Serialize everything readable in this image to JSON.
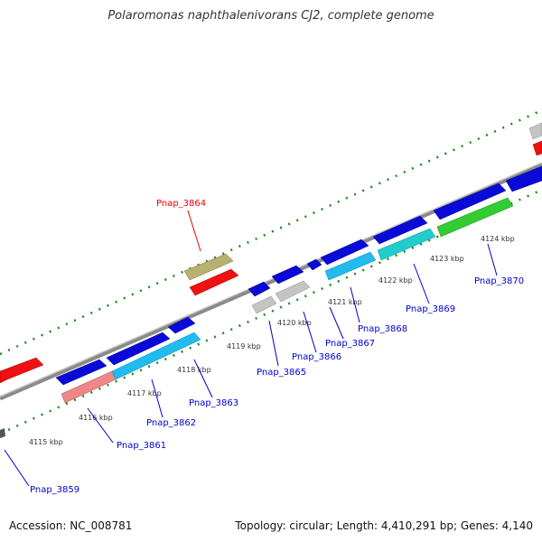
{
  "title": "Polaromonas naphthalenivorans CJ2, complete genome",
  "footer": {
    "accession": "Accession: NC_008781",
    "summary": "Topology: circular; Length: 4,410,291 bp; Genes: 4,140"
  },
  "kbp_labels": [
    "4115 kbp",
    "4116 kbp",
    "4117 kbp",
    "4118 kbp",
    "4119 kbp",
    "4120 kbp",
    "4121 kbp",
    "4122 kbp",
    "4123 kbp",
    "4124 kbp"
  ],
  "gene_labels": [
    {
      "text": "Pnap_3859",
      "color": "#0000cc"
    },
    {
      "text": "Pnap_3861",
      "color": "#0000cc"
    },
    {
      "text": "Pnap_3862",
      "color": "#0000cc"
    },
    {
      "text": "Pnap_3863",
      "color": "#0000cc"
    },
    {
      "text": "Pnap_3864",
      "color": "#ee0000"
    },
    {
      "text": "Pnap_3865",
      "color": "#0000cc"
    },
    {
      "text": "Pnap_3866",
      "color": "#0000cc"
    },
    {
      "text": "Pnap_3867",
      "color": "#0000cc"
    },
    {
      "text": "Pnap_3868",
      "color": "#0000cc"
    },
    {
      "text": "Pnap_3869",
      "color": "#0000cc"
    },
    {
      "text": "Pnap_3870",
      "color": "#0000cc"
    }
  ],
  "colors": {
    "backbone": "#888888",
    "gc_dots": "#1a8a1a",
    "gene_blue": "#0a0ad8",
    "gene_red": "#ee1111",
    "gene_gray": "#c4c4c4",
    "gene_olive": "#b8b070",
    "gene_lightblue": "#22bbee",
    "gene_pink": "#ee8888",
    "gene_teal": "#22cccc",
    "gene_green": "#33cc33"
  }
}
